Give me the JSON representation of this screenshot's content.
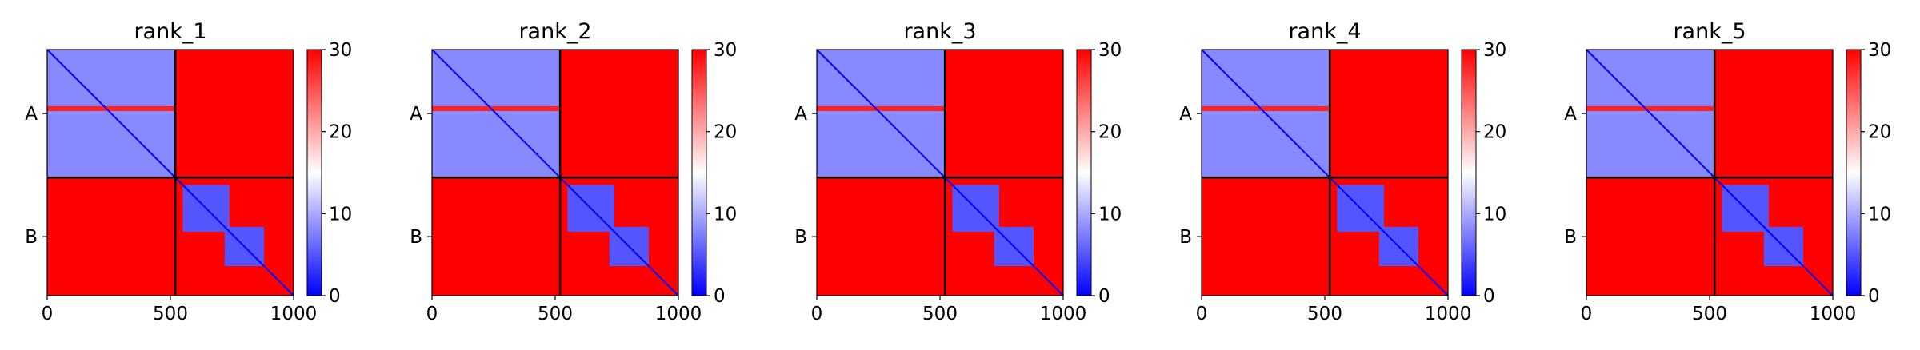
{
  "chart_data": [
    {
      "type": "heatmap",
      "title": "rank_1",
      "xlim": [
        0,
        1000
      ],
      "x_ticks": [
        0,
        500,
        1000
      ],
      "y_tick_labels": [
        "A",
        "B"
      ],
      "chain_boundary": 520,
      "chains": [
        {
          "name": "A",
          "start": 0,
          "end": 520
        },
        {
          "name": "B",
          "start": 520,
          "end": 1000
        }
      ],
      "colorbar": {
        "min": 0,
        "max": 30,
        "ticks": [
          0,
          10,
          20,
          30
        ],
        "colors": [
          "#0000ff",
          "#ffffff",
          "#ff0000"
        ]
      },
      "blocks": [
        {
          "rows": [
            0,
            520
          ],
          "cols": [
            0,
            520
          ],
          "value": 8
        },
        {
          "rows": [
            0,
            520
          ],
          "cols": [
            520,
            1000
          ],
          "value": 30
        },
        {
          "rows": [
            520,
            1000
          ],
          "cols": [
            0,
            520
          ],
          "value": 30
        },
        {
          "rows": [
            520,
            1000
          ],
          "cols": [
            520,
            1000
          ],
          "value": 30
        },
        {
          "rows": [
            550,
            740
          ],
          "cols": [
            550,
            740
          ],
          "value": 5
        },
        {
          "rows": [
            720,
            880
          ],
          "cols": [
            720,
            880
          ],
          "value": 5
        }
      ],
      "stripes": [
        {
          "rows": [
            230,
            250
          ],
          "cols": [
            0,
            520
          ],
          "value": 28
        }
      ]
    },
    {
      "type": "heatmap",
      "title": "rank_2",
      "xlim": [
        0,
        1000
      ],
      "x_ticks": [
        0,
        500,
        1000
      ],
      "y_tick_labels": [
        "A",
        "B"
      ],
      "chain_boundary": 520,
      "chains": [
        {
          "name": "A",
          "start": 0,
          "end": 520
        },
        {
          "name": "B",
          "start": 520,
          "end": 1000
        }
      ],
      "colorbar": {
        "min": 0,
        "max": 30,
        "ticks": [
          0,
          10,
          20,
          30
        ],
        "colors": [
          "#0000ff",
          "#ffffff",
          "#ff0000"
        ]
      },
      "blocks": [
        {
          "rows": [
            0,
            520
          ],
          "cols": [
            0,
            520
          ],
          "value": 8
        },
        {
          "rows": [
            0,
            520
          ],
          "cols": [
            520,
            1000
          ],
          "value": 30
        },
        {
          "rows": [
            520,
            1000
          ],
          "cols": [
            0,
            520
          ],
          "value": 30
        },
        {
          "rows": [
            520,
            1000
          ],
          "cols": [
            520,
            1000
          ],
          "value": 30
        },
        {
          "rows": [
            550,
            740
          ],
          "cols": [
            550,
            740
          ],
          "value": 5
        },
        {
          "rows": [
            720,
            880
          ],
          "cols": [
            720,
            880
          ],
          "value": 5
        }
      ],
      "stripes": [
        {
          "rows": [
            230,
            250
          ],
          "cols": [
            0,
            520
          ],
          "value": 28
        }
      ]
    },
    {
      "type": "heatmap",
      "title": "rank_3",
      "xlim": [
        0,
        1000
      ],
      "x_ticks": [
        0,
        500,
        1000
      ],
      "y_tick_labels": [
        "A",
        "B"
      ],
      "chain_boundary": 520,
      "chains": [
        {
          "name": "A",
          "start": 0,
          "end": 520
        },
        {
          "name": "B",
          "start": 520,
          "end": 1000
        }
      ],
      "colorbar": {
        "min": 0,
        "max": 30,
        "ticks": [
          0,
          10,
          20,
          30
        ],
        "colors": [
          "#0000ff",
          "#ffffff",
          "#ff0000"
        ]
      },
      "blocks": [
        {
          "rows": [
            0,
            520
          ],
          "cols": [
            0,
            520
          ],
          "value": 8
        },
        {
          "rows": [
            0,
            520
          ],
          "cols": [
            520,
            1000
          ],
          "value": 30
        },
        {
          "rows": [
            520,
            1000
          ],
          "cols": [
            0,
            520
          ],
          "value": 30
        },
        {
          "rows": [
            520,
            1000
          ],
          "cols": [
            520,
            1000
          ],
          "value": 30
        },
        {
          "rows": [
            550,
            740
          ],
          "cols": [
            550,
            740
          ],
          "value": 5
        },
        {
          "rows": [
            720,
            880
          ],
          "cols": [
            720,
            880
          ],
          "value": 5
        }
      ],
      "stripes": [
        {
          "rows": [
            230,
            250
          ],
          "cols": [
            0,
            520
          ],
          "value": 28
        }
      ]
    },
    {
      "type": "heatmap",
      "title": "rank_4",
      "xlim": [
        0,
        1000
      ],
      "x_ticks": [
        0,
        500,
        1000
      ],
      "y_tick_labels": [
        "A",
        "B"
      ],
      "chain_boundary": 520,
      "chains": [
        {
          "name": "A",
          "start": 0,
          "end": 520
        },
        {
          "name": "B",
          "start": 520,
          "end": 1000
        }
      ],
      "colorbar": {
        "min": 0,
        "max": 30,
        "ticks": [
          0,
          10,
          20,
          30
        ],
        "colors": [
          "#0000ff",
          "#ffffff",
          "#ff0000"
        ]
      },
      "blocks": [
        {
          "rows": [
            0,
            520
          ],
          "cols": [
            0,
            520
          ],
          "value": 8
        },
        {
          "rows": [
            0,
            520
          ],
          "cols": [
            520,
            1000
          ],
          "value": 30
        },
        {
          "rows": [
            520,
            1000
          ],
          "cols": [
            0,
            520
          ],
          "value": 30
        },
        {
          "rows": [
            520,
            1000
          ],
          "cols": [
            520,
            1000
          ],
          "value": 30
        },
        {
          "rows": [
            550,
            740
          ],
          "cols": [
            550,
            740
          ],
          "value": 5
        },
        {
          "rows": [
            720,
            880
          ],
          "cols": [
            720,
            880
          ],
          "value": 5
        }
      ],
      "stripes": [
        {
          "rows": [
            230,
            250
          ],
          "cols": [
            0,
            520
          ],
          "value": 28
        }
      ]
    },
    {
      "type": "heatmap",
      "title": "rank_5",
      "xlim": [
        0,
        1000
      ],
      "x_ticks": [
        0,
        500,
        1000
      ],
      "y_tick_labels": [
        "A",
        "B"
      ],
      "chain_boundary": 520,
      "chains": [
        {
          "name": "A",
          "start": 0,
          "end": 520
        },
        {
          "name": "B",
          "start": 520,
          "end": 1000
        }
      ],
      "colorbar": {
        "min": 0,
        "max": 30,
        "ticks": [
          0,
          10,
          20,
          30
        ],
        "colors": [
          "#0000ff",
          "#ffffff",
          "#ff0000"
        ]
      },
      "blocks": [
        {
          "rows": [
            0,
            520
          ],
          "cols": [
            0,
            520
          ],
          "value": 8
        },
        {
          "rows": [
            0,
            520
          ],
          "cols": [
            520,
            1000
          ],
          "value": 30
        },
        {
          "rows": [
            520,
            1000
          ],
          "cols": [
            0,
            520
          ],
          "value": 30
        },
        {
          "rows": [
            520,
            1000
          ],
          "cols": [
            520,
            1000
          ],
          "value": 30
        },
        {
          "rows": [
            550,
            740
          ],
          "cols": [
            550,
            740
          ],
          "value": 5
        },
        {
          "rows": [
            720,
            880
          ],
          "cols": [
            720,
            880
          ],
          "value": 5
        }
      ],
      "stripes": [
        {
          "rows": [
            230,
            250
          ],
          "cols": [
            0,
            520
          ],
          "value": 28
        }
      ]
    }
  ]
}
